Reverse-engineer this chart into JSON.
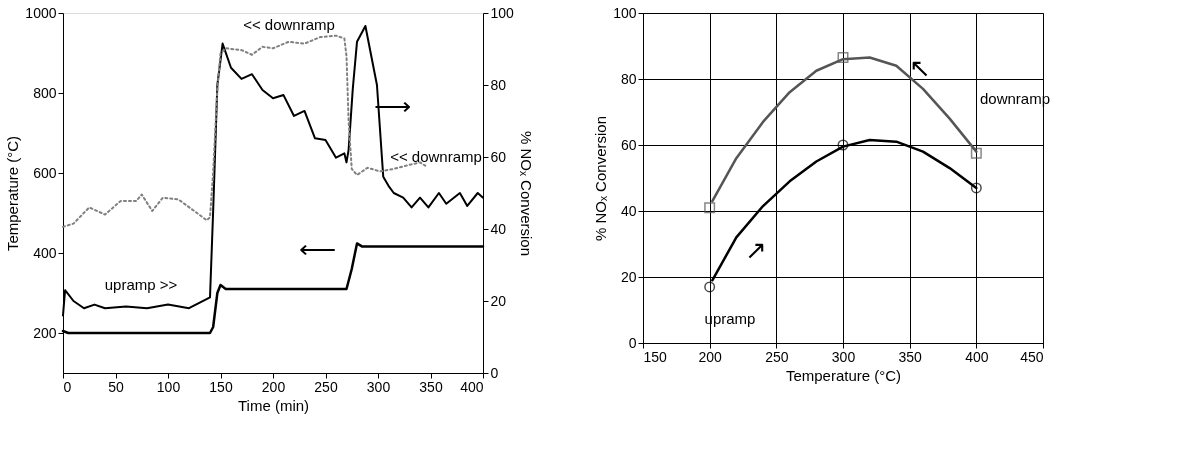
{
  "chart_data": [
    {
      "type": "line",
      "xlabel": "Time (min)",
      "ylabel": "Temperature (°C)",
      "y2label": "% NOₓ Conversion",
      "xlim": [
        0,
        400
      ],
      "xticks": [
        0,
        50,
        100,
        150,
        200,
        250,
        300,
        350,
        400
      ],
      "ylim": [
        100,
        1000
      ],
      "yticks": [
        200,
        400,
        600,
        800,
        1000
      ],
      "y2lim": [
        0,
        100
      ],
      "y2ticks": [
        0,
        20,
        40,
        60,
        80,
        100
      ],
      "grid": false,
      "marker": "none",
      "annotations": [
        "<<  downramp",
        "upramp >>",
        "<< downramp",
        "⟶",
        "⟵"
      ],
      "series": [
        {
          "color": "#000000",
          "line_style": "solid",
          "axis": "y",
          "x": [
            0,
            5,
            140,
            143,
            147,
            150,
            155,
            270,
            275,
            280,
            285,
            400
          ],
          "values": [
            205,
            200,
            200,
            215,
            300,
            320,
            310,
            310,
            360,
            424,
            416,
            416
          ]
        },
        {
          "color": "#000000",
          "line_style": "solid",
          "axis": "y2",
          "x": [
            0,
            2,
            10,
            20,
            30,
            40,
            60,
            80,
            100,
            120,
            140,
            143,
            147,
            152,
            160,
            170,
            180,
            190,
            200,
            210,
            220,
            230,
            240,
            250,
            260,
            268,
            270,
            272,
            276,
            280,
            288,
            299,
            305,
            310,
            315,
            324,
            332,
            340,
            348,
            358,
            365,
            378,
            385,
            395,
            400
          ],
          "values": [
            16,
            23,
            20,
            18,
            19,
            18,
            18.5,
            18,
            19,
            18,
            21,
            45,
            80,
            91.5,
            84.8,
            81.7,
            83,
            78.6,
            76.3,
            77.2,
            71.4,
            72.8,
            65.2,
            64.7,
            59.8,
            61,
            58.5,
            62,
            79,
            92,
            96.4,
            80,
            54.5,
            52,
            50,
            48.7,
            46,
            48.7,
            46,
            50,
            47,
            50,
            46.4,
            50,
            48.7
          ]
        },
        {
          "color": "#808080",
          "line_style": "dotted",
          "axis": "y2",
          "x": [
            0,
            10,
            25,
            40,
            55,
            70,
            75,
            85,
            95,
            110,
            125,
            137,
            140,
            143,
            147,
            150,
            155,
            170,
            180,
            190,
            200,
            215,
            230,
            245,
            260,
            268,
            270,
            272,
            275,
            280,
            290,
            302,
            315,
            327,
            340,
            345
          ],
          "values": [
            40.6,
            41.5,
            46,
            44,
            47.8,
            47.8,
            49.6,
            45,
            48.7,
            48.2,
            45,
            42.4,
            43.3,
            55.8,
            79,
            88.8,
            90.2,
            89.7,
            88.4,
            90.6,
            90.2,
            92,
            91.5,
            93.3,
            93.7,
            92.9,
            88,
            70,
            56.7,
            55,
            57,
            56,
            56.7,
            57.6,
            58.5,
            57.6
          ]
        }
      ]
    },
    {
      "type": "line",
      "xlabel": "Temperature (°C)",
      "ylabel": "% NOₓ Conversion",
      "xlim": [
        150,
        450
      ],
      "xticks": [
        150,
        200,
        250,
        300,
        350,
        400,
        450
      ],
      "ylim": [
        0,
        100
      ],
      "yticks": [
        0,
        20,
        40,
        60,
        80,
        100
      ],
      "grid": true,
      "annotations": [
        "downramp",
        "upramp",
        "↗",
        "↖"
      ],
      "series": [
        {
          "color": "#555555",
          "line_style": "solid",
          "x": [
            202,
            220,
            240,
            260,
            280,
            300,
            320,
            340,
            360,
            380,
            400
          ],
          "values": [
            43,
            56,
            67,
            76,
            82.5,
            86,
            86.5,
            84,
            77,
            68,
            58
          ]
        },
        {
          "color": "#000000",
          "line_style": "solid",
          "x": [
            202,
            220,
            240,
            260,
            280,
            300,
            320,
            340,
            360,
            380,
            400
          ],
          "values": [
            19,
            32,
            41.5,
            49,
            55,
            59.5,
            61.5,
            61,
            58,
            53,
            47
          ]
        },
        {
          "type": "scatter",
          "color": "#555555",
          "marker": "square",
          "x": [
            200,
            300,
            400
          ],
          "values": [
            41,
            86.5,
            57.5
          ]
        },
        {
          "type": "scatter",
          "color": "#000000",
          "marker": "circle",
          "x": [
            200,
            300,
            400
          ],
          "values": [
            17,
            60,
            47
          ]
        }
      ]
    }
  ]
}
